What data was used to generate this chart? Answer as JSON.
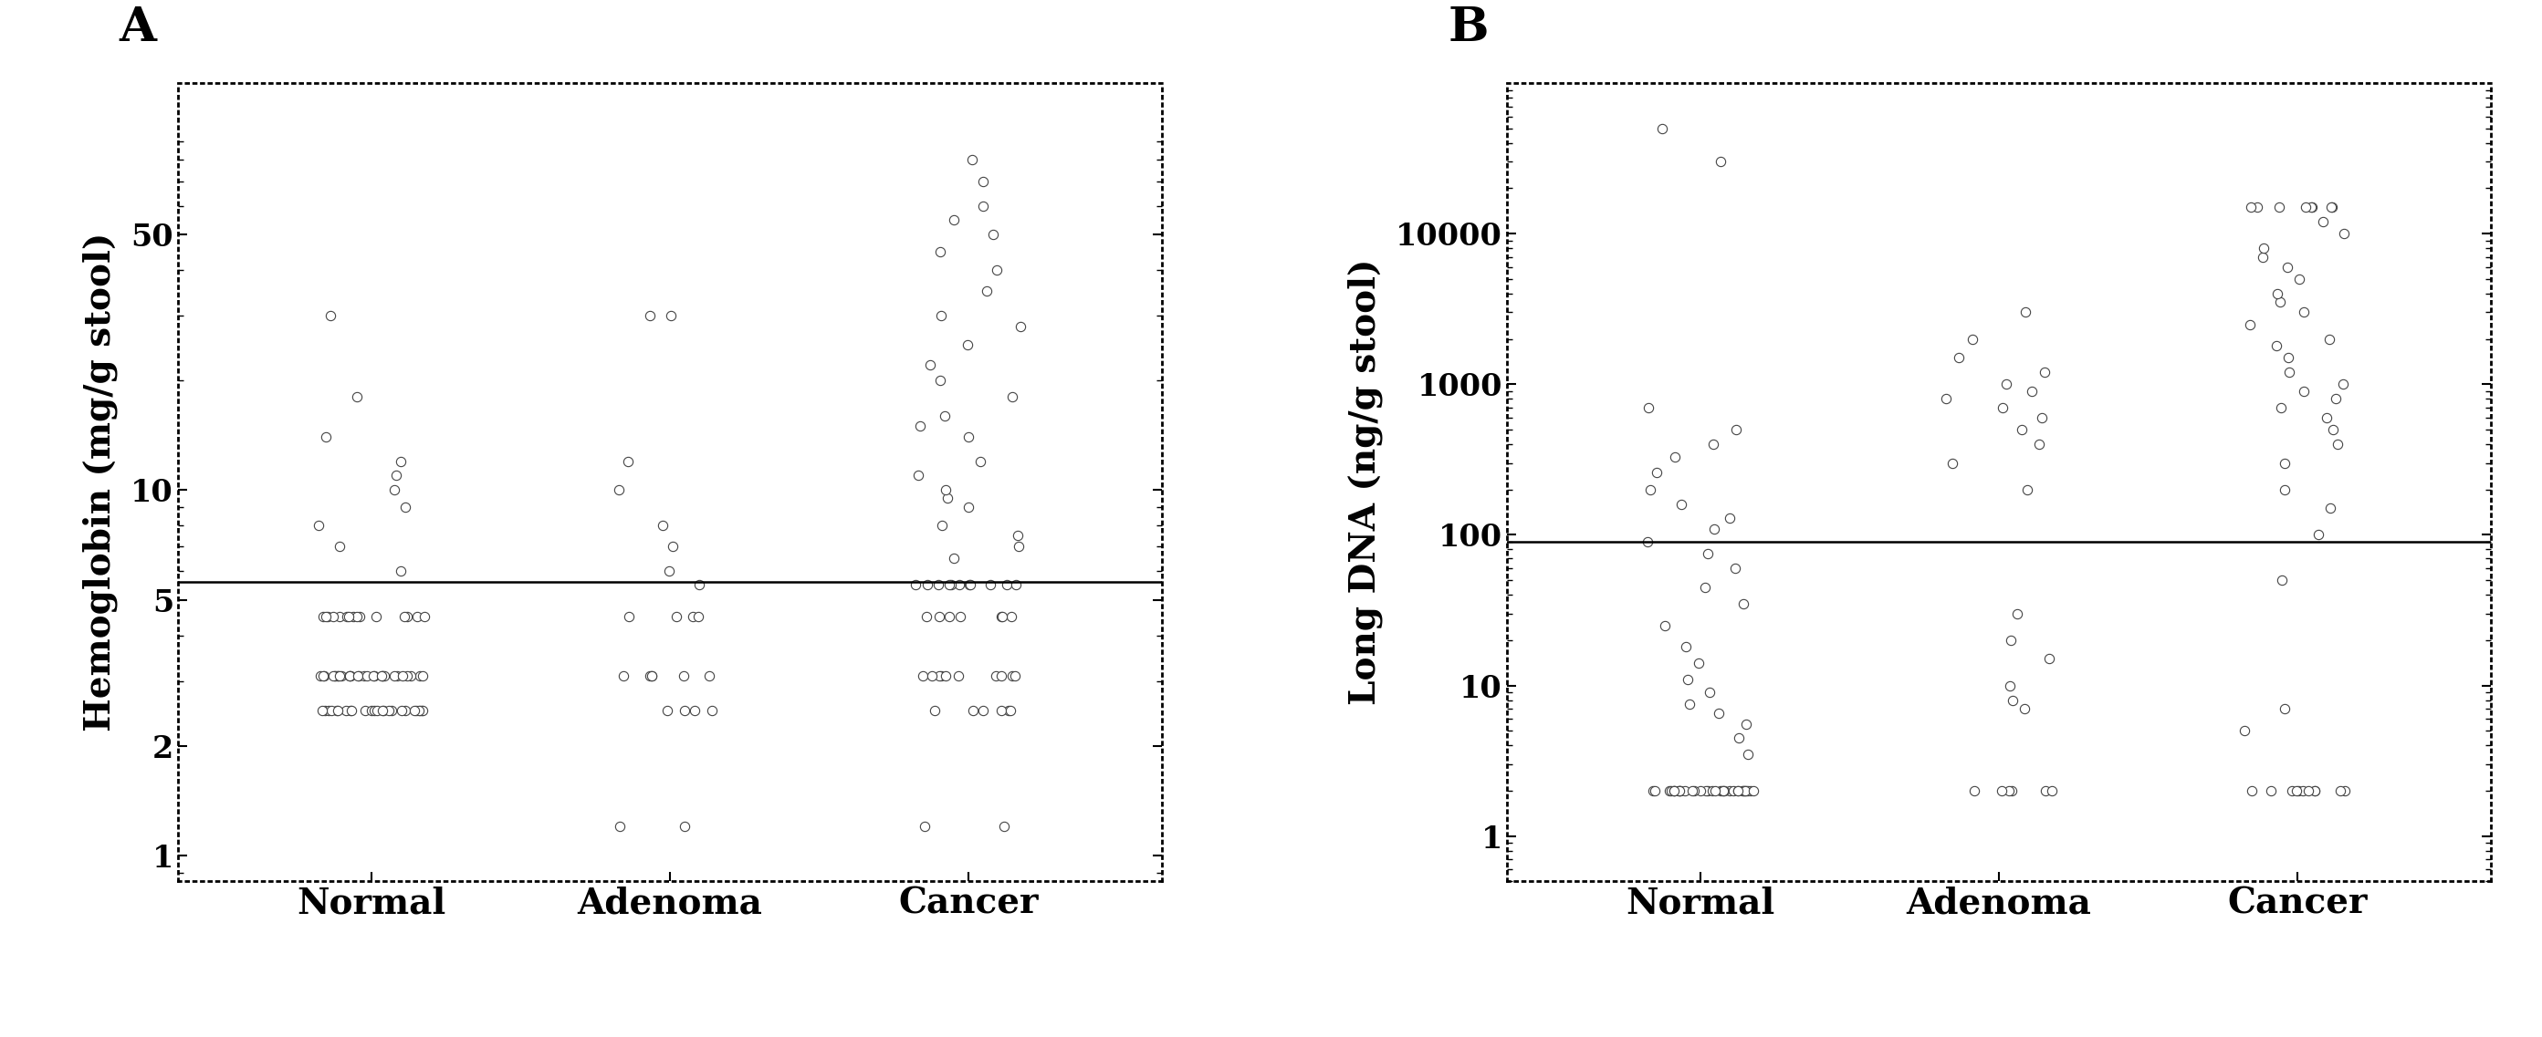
{
  "panel_A": {
    "label": "A",
    "ylabel": "Hemoglobin (mg/g stool)",
    "categories": [
      "Normal",
      "Adenoma",
      "Cancer"
    ],
    "reference_line": 5.6,
    "ylim": [
      0.85,
      130
    ],
    "yticks": [
      1,
      2,
      5,
      10,
      50
    ],
    "ytick_labels": [
      "1",
      "2",
      "5",
      "10",
      "50"
    ],
    "data": {
      "Normal": [
        3.1,
        3.1,
        3.1,
        3.1,
        3.1,
        3.1,
        3.1,
        3.1,
        3.1,
        3.1,
        3.1,
        3.1,
        3.1,
        3.1,
        3.1,
        3.1,
        3.1,
        3.1,
        3.1,
        3.1,
        3.1,
        3.1,
        3.1,
        3.1,
        3.1,
        3.1,
        3.1,
        3.1,
        3.1,
        3.1,
        2.5,
        2.5,
        2.5,
        2.5,
        2.5,
        2.5,
        2.5,
        2.5,
        2.5,
        2.5,
        2.5,
        2.5,
        2.5,
        2.5,
        2.5,
        2.5,
        2.5,
        2.5,
        2.5,
        2.5,
        2.5,
        2.5,
        2.5,
        2.5,
        2.5,
        4.5,
        4.5,
        4.5,
        4.5,
        4.5,
        4.5,
        4.5,
        4.5,
        4.5,
        4.5,
        4.5,
        4.5,
        4.5,
        4.5,
        4.5,
        6.0,
        7.0,
        8.0,
        9.0,
        10.0,
        11.0,
        12.0,
        14.0,
        18.0,
        30.0
      ],
      "Adenoma": [
        3.1,
        3.1,
        3.1,
        3.1,
        3.1,
        3.1,
        2.5,
        2.5,
        2.5,
        2.5,
        4.5,
        4.5,
        4.5,
        4.5,
        5.5,
        6.0,
        7.0,
        8.0,
        10.0,
        12.0,
        1.2,
        1.2,
        30.0,
        30.0
      ],
      "Cancer": [
        3.1,
        3.1,
        3.1,
        3.1,
        3.1,
        3.1,
        3.1,
        3.1,
        3.1,
        3.1,
        2.5,
        2.5,
        2.5,
        2.5,
        2.5,
        2.5,
        4.5,
        4.5,
        4.5,
        4.5,
        4.5,
        4.5,
        4.5,
        5.5,
        5.5,
        5.5,
        5.5,
        5.5,
        5.5,
        5.5,
        5.5,
        5.5,
        5.5,
        5.5,
        6.5,
        7.0,
        7.5,
        8.0,
        9.0,
        9.5,
        10.0,
        11.0,
        12.0,
        14.0,
        15.0,
        16.0,
        18.0,
        20.0,
        22.0,
        25.0,
        28.0,
        30.0,
        35.0,
        40.0,
        45.0,
        50.0,
        55.0,
        60.0,
        70.0,
        80.0,
        1.2,
        1.2
      ]
    }
  },
  "panel_B": {
    "label": "B",
    "ylabel": "Long DNA (ng/g stool)",
    "categories": [
      "Normal",
      "Adenoma",
      "Cancer"
    ],
    "reference_line": 90.0,
    "ylim": [
      0.5,
      100000
    ],
    "yticks": [
      1,
      10,
      100,
      1000,
      10000
    ],
    "ytick_labels": [
      "1",
      "10",
      "100",
      "1000",
      "10000"
    ],
    "data": {
      "Normal": [
        2.0,
        2.0,
        2.0,
        2.0,
        2.0,
        2.0,
        2.0,
        2.0,
        2.0,
        2.0,
        2.0,
        2.0,
        2.0,
        2.0,
        2.0,
        2.0,
        2.0,
        2.0,
        2.0,
        2.0,
        2.0,
        2.0,
        2.0,
        2.0,
        2.0,
        2.0,
        2.0,
        2.0,
        2.0,
        2.0,
        2.0,
        2.0,
        2.0,
        2.0,
        2.0,
        3.5,
        4.5,
        5.5,
        6.5,
        7.5,
        9.0,
        11.0,
        14.0,
        18.0,
        25.0,
        35.0,
        45.0,
        60.0,
        75.0,
        90.0,
        110.0,
        130.0,
        160.0,
        200.0,
        260.0,
        330.0,
        400.0,
        500.0,
        700.0,
        30000.0,
        50000.0
      ],
      "Adenoma": [
        2.0,
        2.0,
        2.0,
        2.0,
        2.0,
        2.0,
        7.0,
        8.0,
        10.0,
        15.0,
        20.0,
        30.0,
        200.0,
        300.0,
        400.0,
        500.0,
        600.0,
        700.0,
        800.0,
        900.0,
        1000.0,
        1200.0,
        1500.0,
        2000.0,
        3000.0
      ],
      "Cancer": [
        2.0,
        2.0,
        2.0,
        2.0,
        2.0,
        2.0,
        2.0,
        2.0,
        2.0,
        2.0,
        2.0,
        5.0,
        7.0,
        50.0,
        100.0,
        150.0,
        200.0,
        300.0,
        400.0,
        500.0,
        600.0,
        700.0,
        800.0,
        900.0,
        1000.0,
        1200.0,
        1500.0,
        1800.0,
        2000.0,
        2500.0,
        3000.0,
        3500.0,
        4000.0,
        5000.0,
        6000.0,
        7000.0,
        8000.0,
        10000.0,
        12000.0,
        15000.0,
        15000.0,
        15000.0,
        15000.0,
        15000.0,
        15000.0,
        15000.0,
        15000.0
      ]
    }
  },
  "bg_color": "white",
  "point_color": "white",
  "point_edge_color": "#444444",
  "point_size": 55,
  "ref_line_color": "black",
  "ref_line_lw": 1.8,
  "spine_lw": 2.0,
  "xlabel_fontsize": 28,
  "ylabel_fontsize": 28,
  "tick_fontsize": 24,
  "label_fontsize": 38
}
